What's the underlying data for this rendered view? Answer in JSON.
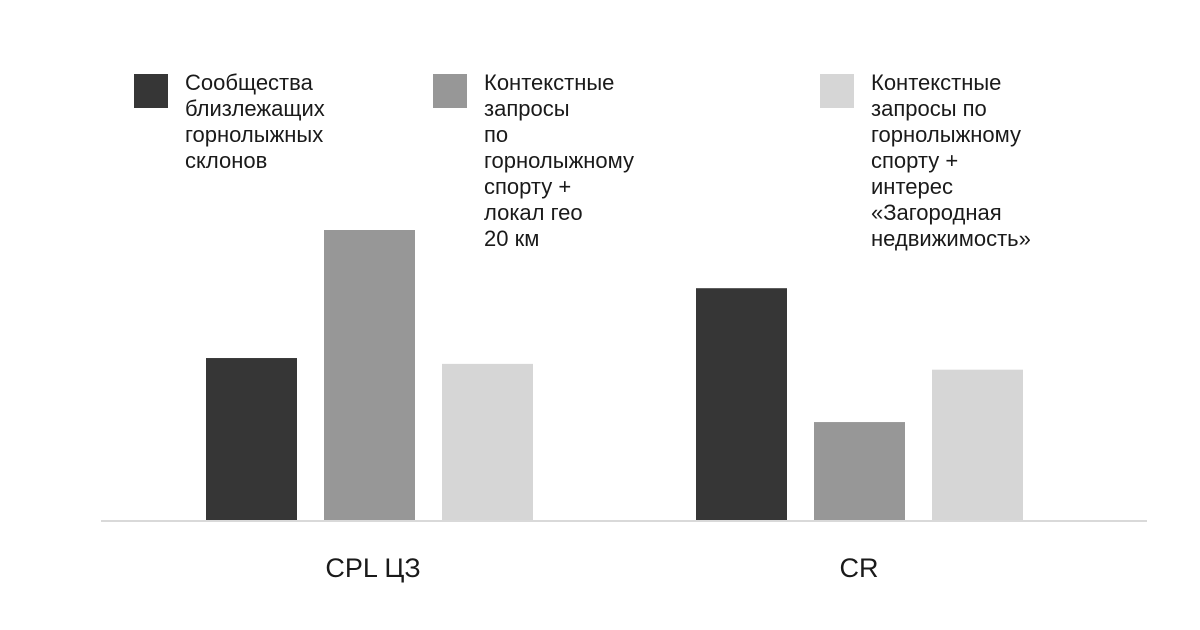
{
  "chart_data": {
    "type": "bar",
    "categories": [
      "CPL ЦЗ",
      "CR"
    ],
    "series": [
      {
        "name": "Сообщества\nблизлежащих\nгорнолыжных\nсклонов",
        "values": [
          56,
          80
        ],
        "color": "#363636"
      },
      {
        "name": "Контекстные запросы\nпо горнолыжному\nспорту + локал гео\n20 км",
        "values": [
          100,
          34
        ],
        "color": "#979797"
      },
      {
        "name": "Контекстные\nзапросы по\nгорнолыжному\nспорту + интерес\n«Загородная\nнедвижимость»",
        "values": [
          54,
          52
        ],
        "color": "#d6d6d6"
      }
    ],
    "ylim": [
      0,
      100
    ],
    "grid": false,
    "legend_position": "top",
    "axis_color": "#d9d9d9"
  }
}
